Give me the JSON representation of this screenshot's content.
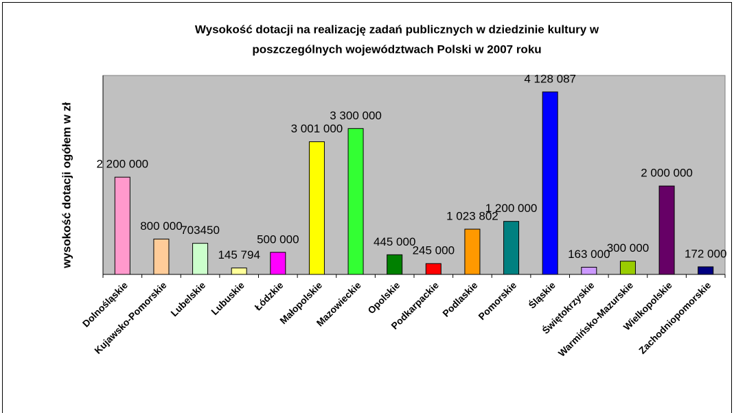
{
  "chart_data": {
    "type": "bar",
    "title": [
      "Wysokość dotacji na realizację zadań publicznych w dziedzinie kultury w",
      "poszczególnych województwach Polski w 2007 roku"
    ],
    "y_label": "wysokość dotacji ogółem w zł",
    "categories": [
      "Dolnośląskie",
      "Kujawsko-Pomorskie",
      "Lubelskie",
      "Lubuskie",
      "Łódzkie",
      "Małopolskie",
      "Mazowieckie",
      "Opolskie",
      "Podkarpackie",
      "Podlaskie",
      "Pomorskie",
      "Śląskie",
      "Świętokrzyskie",
      "Warmińsko-Mazurskie",
      "Wielkopolskie",
      "Zachodniopomorskie"
    ],
    "values": [
      2200000,
      800000,
      703450,
      145794,
      500000,
      3001000,
      3300000,
      445000,
      245000,
      1023802,
      1200000,
      4128087,
      163000,
      300000,
      2000000,
      172000
    ],
    "value_labels": [
      "2 200 000",
      "800 000",
      "703450",
      "145 794",
      "500 000",
      "3 001 000",
      "3 300 000",
      "445 000",
      "245 000",
      "1 023 802",
      "1 200 000",
      "4 128 087",
      "163 000",
      "300 000",
      "2 000 000",
      "172 000"
    ],
    "colors": [
      "#ff99cc",
      "#ffcc99",
      "#ccffcc",
      "#ffff99",
      "#ff00ff",
      "#ffff00",
      "#33ff33",
      "#008000",
      "#ff0000",
      "#ff9900",
      "#008080",
      "#0000ff",
      "#cc99ff",
      "#99cc00",
      "#660066",
      "#000080"
    ],
    "ylim": [
      0,
      4500000
    ],
    "grid": false
  }
}
